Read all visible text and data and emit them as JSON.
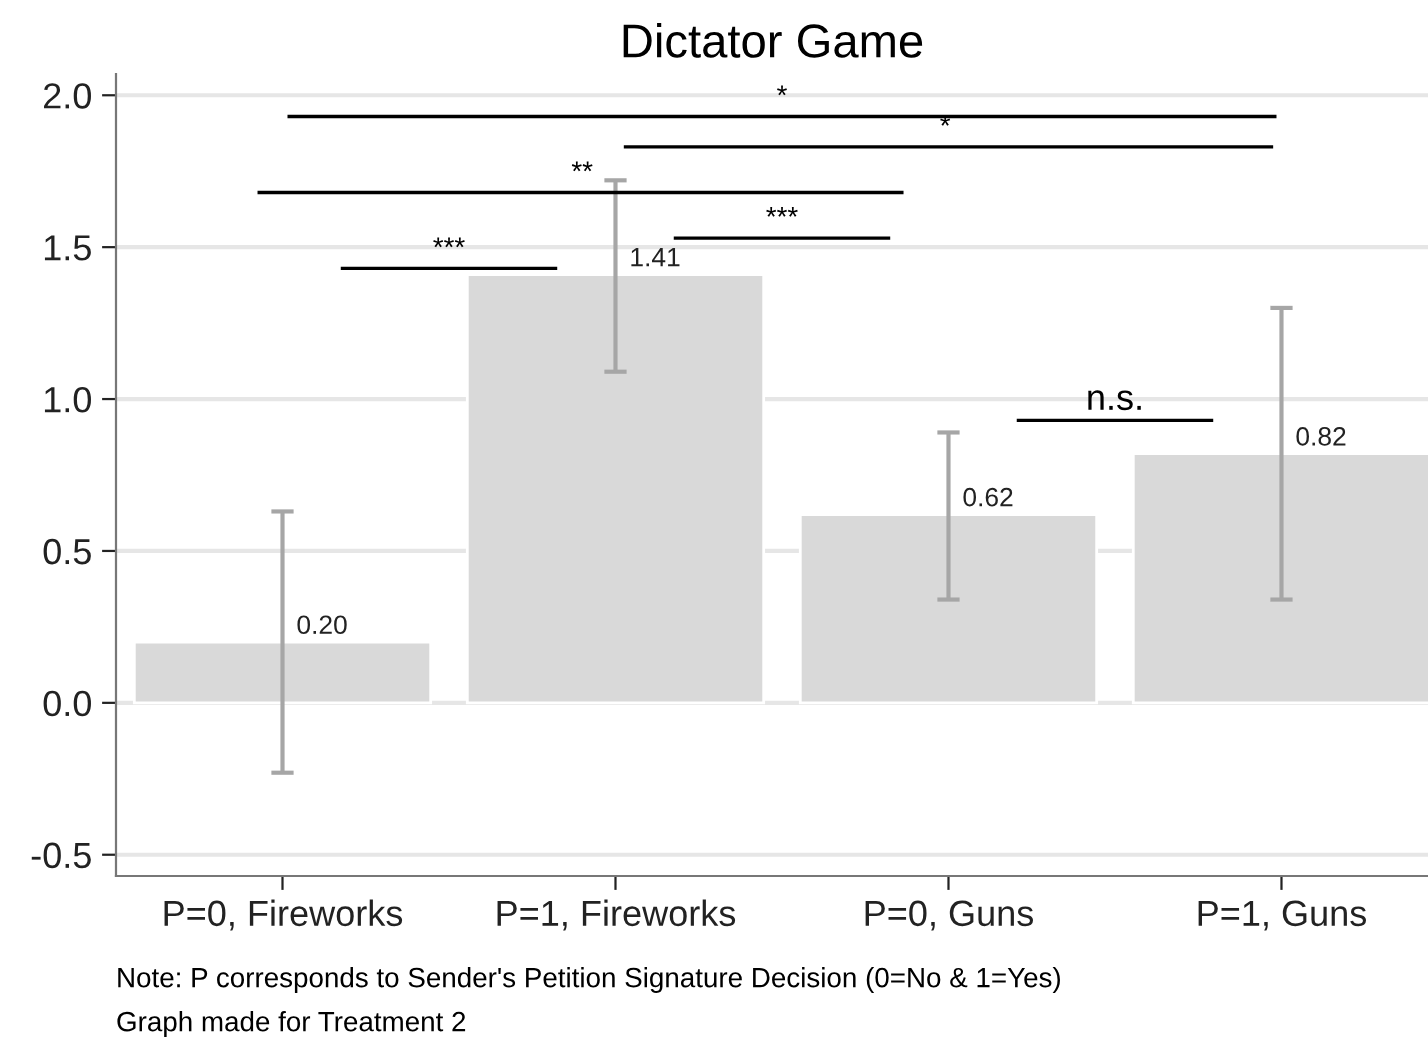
{
  "chart_data": {
    "type": "bar",
    "title": "Dictator Game",
    "categories": [
      "P=0, Fireworks",
      "P=1, Fireworks",
      "P=0, Guns",
      "P=1, Guns"
    ],
    "values": [
      0.2,
      1.41,
      0.62,
      0.82
    ],
    "errors": [
      [
        -0.23,
        0.63
      ],
      [
        1.09,
        1.72
      ],
      [
        0.34,
        0.89
      ],
      [
        0.34,
        1.3
      ]
    ],
    "color": "#d9d9d9",
    "value_labels": [
      "0.20",
      "1.41",
      "0.62",
      "0.82"
    ],
    "ylim": [
      -0.57,
      2.07
    ],
    "yticks": [
      {
        "value": -0.5,
        "label": "-0.5"
      },
      {
        "value": 0,
        "label": "0.0"
      },
      {
        "value": 0.5,
        "label": "0.5"
      },
      {
        "value": 1,
        "label": "1.0"
      },
      {
        "value": 1.5,
        "label": "1.5"
      },
      {
        "value": 2,
        "label": "2.0"
      }
    ],
    "grid": "y",
    "annotations": [
      "***",
      "**",
      "*",
      "*",
      "***",
      "n.s.",
      "Note: P corresponds to Sender's Petition Signature Decision (0=No & 1=Yes)",
      "Graph made for Treatment 2"
    ]
  }
}
